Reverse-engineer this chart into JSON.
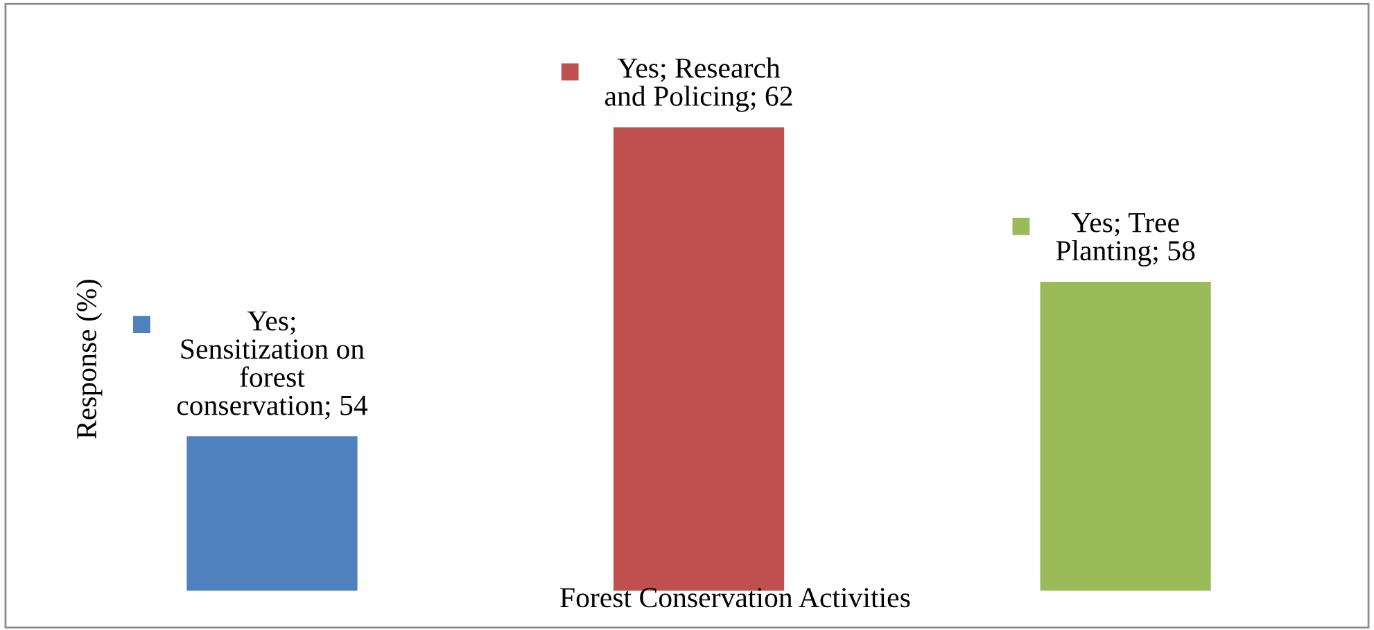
{
  "chart_data": {
    "type": "bar",
    "xlabel": "Forest Conservation Activities",
    "ylabel": "Response (%)",
    "categories": [
      null,
      null,
      null
    ],
    "series": [
      {
        "colors": [
          "#4f81bd",
          "#c0504d",
          "#9bbb59"
        ],
        "values": [
          54,
          62,
          58
        ],
        "value_labels": [
          "Yes;\nSensitization on\nforest\nconservation; 54",
          "Yes; Research\nand Policing; 62",
          "Yes; Tree\nPlanting; 58"
        ]
      }
    ],
    "ylim": [
      50,
      62
    ],
    "tick_labels": false,
    "grid": false,
    "legend": false
  }
}
